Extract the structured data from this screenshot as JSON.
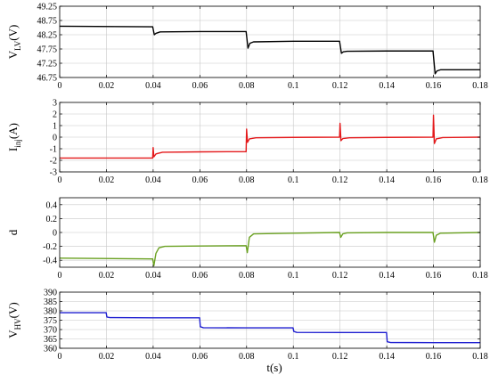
{
  "chart_data": [
    {
      "type": "line",
      "ylabel_main": "V",
      "ylabel_sub": "LV",
      "ylabel_unit": "(V)",
      "xlim": [
        0,
        0.18
      ],
      "ylim": [
        46.75,
        49.25
      ],
      "xticks": [
        "0",
        "0.02",
        "0.04",
        "0.06",
        "0.08",
        "0.1",
        "0.12",
        "0.14",
        "0.16",
        "0.18"
      ],
      "yticks": [
        46.75,
        47.25,
        47.75,
        48.25,
        48.75,
        49.25
      ],
      "ytick_labels": [
        "46.75",
        "47.25",
        "47.75",
        "48.25",
        "48.75",
        "49.25"
      ],
      "grid": true,
      "series": [
        {
          "color": "#000000",
          "x": [
            0,
            0.0398,
            0.0405,
            0.0412,
            0.043,
            0.06,
            0.0798,
            0.0806,
            0.0814,
            0.083,
            0.1,
            0.1198,
            0.1206,
            0.1214,
            0.123,
            0.14,
            0.1598,
            0.1607,
            0.1615,
            0.163,
            0.18
          ],
          "y": [
            48.55,
            48.53,
            48.25,
            48.3,
            48.35,
            48.36,
            48.36,
            47.78,
            47.95,
            48.0,
            48.02,
            48.02,
            47.6,
            47.65,
            47.67,
            47.68,
            47.68,
            46.88,
            46.98,
            47.02,
            47.02
          ]
        }
      ]
    },
    {
      "type": "line",
      "ylabel_main": "I",
      "ylabel_sub": "inj",
      "ylabel_unit": "(A)",
      "xlim": [
        0,
        0.18
      ],
      "ylim": [
        -3,
        3
      ],
      "xticks": [
        "0",
        "0.02",
        "0.04",
        "0.06",
        "0.08",
        "0.1",
        "0.12",
        "0.14",
        "0.16",
        "0.18"
      ],
      "yticks": [
        -3,
        -2,
        -1,
        0,
        1,
        2,
        3
      ],
      "ytick_labels": [
        "-3",
        "-2",
        "-1",
        "0",
        "1",
        "2",
        "3"
      ],
      "grid": true,
      "series": [
        {
          "color": "#e41a1c",
          "x": [
            0,
            0.0398,
            0.04,
            0.0403,
            0.0412,
            0.044,
            0.06,
            0.0798,
            0.08,
            0.0804,
            0.0812,
            0.084,
            0.1,
            0.1198,
            0.12,
            0.1204,
            0.1212,
            0.124,
            0.14,
            0.1598,
            0.16,
            0.1604,
            0.1612,
            0.164,
            0.18
          ],
          "y": [
            -1.8,
            -1.8,
            -0.9,
            -1.7,
            -1.45,
            -1.3,
            -1.27,
            -1.25,
            0.7,
            -0.45,
            -0.15,
            -0.05,
            -0.02,
            0.0,
            1.2,
            -0.3,
            -0.12,
            -0.05,
            -0.02,
            0.0,
            1.9,
            -0.55,
            -0.15,
            -0.03,
            0.0
          ]
        }
      ]
    },
    {
      "type": "line",
      "ylabel_main": "d",
      "ylabel_sub": "",
      "ylabel_unit": "",
      "xlim": [
        0,
        0.18
      ],
      "ylim": [
        -0.5,
        0.5
      ],
      "xticks": [
        "0",
        "0.02",
        "0.04",
        "0.06",
        "0.08",
        "0.1",
        "0.12",
        "0.14",
        "0.16",
        "0.18"
      ],
      "yticks": [
        -0.4,
        -0.2,
        0,
        0.2,
        0.4
      ],
      "ytick_labels": [
        "-0.4",
        "-0.2",
        "0",
        "0.2",
        "0.4"
      ],
      "grid": true,
      "series": [
        {
          "color": "#6aa121",
          "x": [
            0,
            0.0398,
            0.0403,
            0.0412,
            0.0425,
            0.045,
            0.06,
            0.0798,
            0.0803,
            0.0812,
            0.083,
            0.1,
            0.1198,
            0.1203,
            0.1212,
            0.123,
            0.14,
            0.1598,
            0.1604,
            0.1612,
            0.163,
            0.18
          ],
          "y": [
            -0.37,
            -0.38,
            -0.48,
            -0.3,
            -0.22,
            -0.2,
            -0.195,
            -0.19,
            -0.29,
            -0.07,
            -0.02,
            -0.01,
            0.0,
            -0.07,
            -0.02,
            -0.005,
            0.0,
            0.0,
            -0.14,
            -0.04,
            -0.01,
            0.0
          ]
        }
      ]
    },
    {
      "type": "line",
      "ylabel_main": "V",
      "ylabel_sub": "HV",
      "ylabel_unit": "(V)",
      "xlim": [
        0,
        0.18
      ],
      "ylim": [
        360,
        390
      ],
      "xticks": [
        "0",
        "0.02",
        "0.04",
        "0.06",
        "0.08",
        "0.1",
        "0.12",
        "0.14",
        "0.16",
        "0.18"
      ],
      "yticks": [
        360,
        365,
        370,
        375,
        380,
        385,
        390
      ],
      "ytick_labels": [
        "360",
        "365",
        "370",
        "375",
        "380",
        "385",
        "390"
      ],
      "grid": true,
      "series": [
        {
          "color": "#1f1fd0",
          "x": [
            0,
            0.0199,
            0.0202,
            0.0215,
            0.04,
            0.0599,
            0.0602,
            0.0615,
            0.08,
            0.0999,
            0.1002,
            0.1015,
            0.12,
            0.1399,
            0.1402,
            0.1415,
            0.16,
            0.18
          ],
          "y": [
            379,
            379,
            376.7,
            376.4,
            376.3,
            376.3,
            371.5,
            371.0,
            370.9,
            370.9,
            369.0,
            368.5,
            368.4,
            368.4,
            363.5,
            363.1,
            363.0,
            363.0
          ]
        }
      ]
    }
  ],
  "xlabel": "t(s)"
}
